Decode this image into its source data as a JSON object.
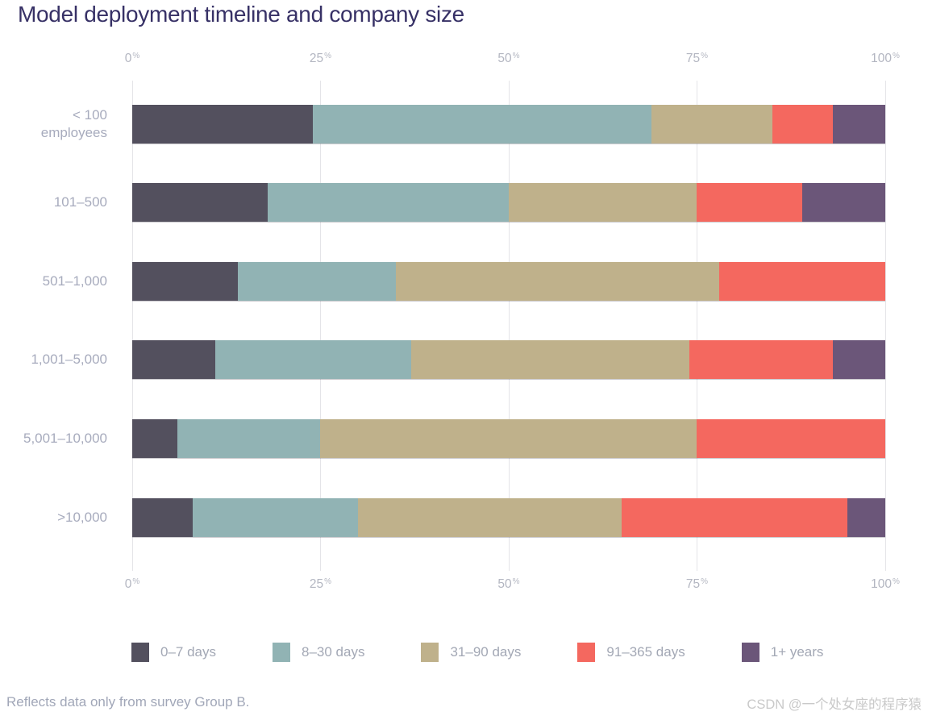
{
  "title": "Model deployment timeline and company size",
  "footnote": "Reflects data only from survey Group B.",
  "watermark": "CSDN @一个处女座的程序猿",
  "chart_data": {
    "type": "bar",
    "subtype": "horizontal-stacked-percent",
    "title": "Model deployment timeline and company size",
    "categories": [
      "< 100 employees",
      "101–500",
      "501–1,000",
      "1,001–5,000",
      "5,001–10,000",
      ">10,000"
    ],
    "series": [
      {
        "name": "0–7 days",
        "color": "#53505e",
        "values": [
          24,
          18,
          14,
          11,
          6,
          8
        ]
      },
      {
        "name": "8–30 days",
        "color": "#91b3b4",
        "values": [
          45,
          32,
          21,
          26,
          19,
          22
        ]
      },
      {
        "name": "31–90 days",
        "color": "#bfb18b",
        "values": [
          16,
          25,
          43,
          37,
          50,
          35
        ]
      },
      {
        "name": "91–365 days",
        "color": "#f4685f",
        "values": [
          8,
          14,
          22,
          19,
          25,
          30
        ]
      },
      {
        "name": "1+ years",
        "color": "#6b5679",
        "values": [
          7,
          11,
          0,
          7,
          0,
          5
        ]
      }
    ],
    "x_axis": {
      "min": 0,
      "max": 100,
      "unit": "%",
      "ticks": [
        "0%",
        "25%",
        "50%",
        "75%",
        "100%"
      ],
      "tick_positions": [
        0,
        25,
        50,
        75,
        100
      ],
      "shown_on": [
        "top",
        "bottom"
      ]
    },
    "grid": true,
    "legend_position": "bottom"
  }
}
